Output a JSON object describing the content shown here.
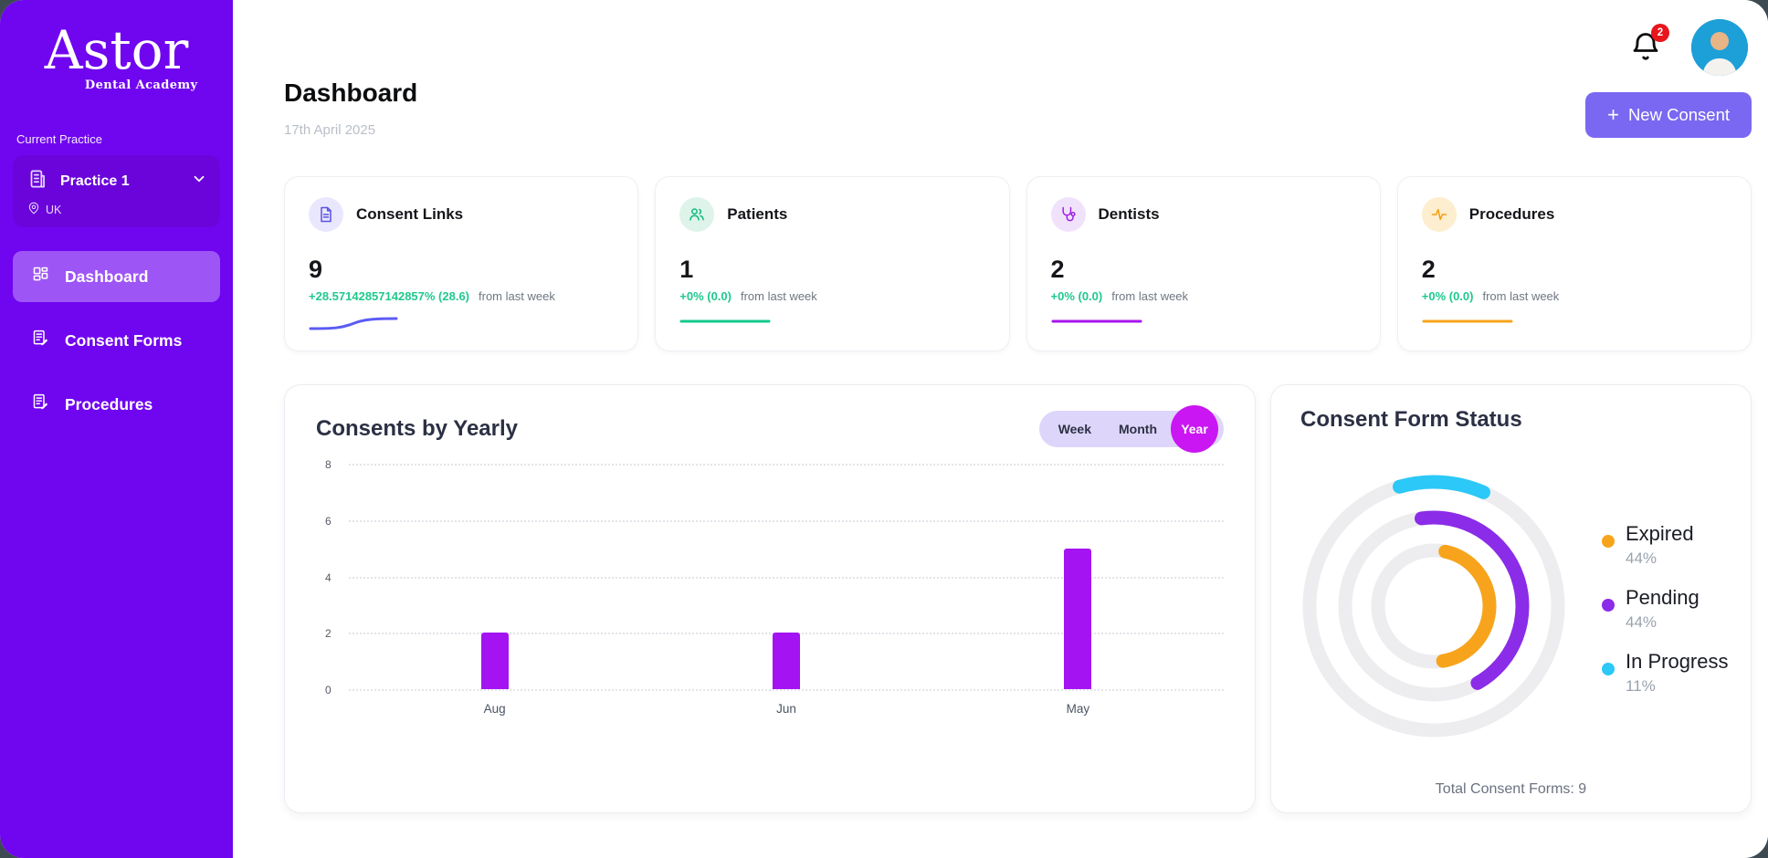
{
  "sidebar": {
    "logo": {
      "name": "Astor",
      "tagline": "Dental Academy"
    },
    "current_practice_label": "Current Practice",
    "practice": {
      "name": "Practice 1",
      "location": "UK"
    },
    "nav": [
      {
        "label": "Dashboard"
      },
      {
        "label": "Consent Forms"
      },
      {
        "label": "Procedures"
      }
    ]
  },
  "topbar": {
    "notification_count": "2"
  },
  "header": {
    "title": "Dashboard",
    "date": "17th April 2025",
    "new_consent_label": "New Consent",
    "plus": "+"
  },
  "stat_cards": [
    {
      "title": "Consent Links",
      "value": "9",
      "change": "+28.57142857142857% (28.6)",
      "change_suffix": "from last week",
      "accent": "#5b5bf5",
      "chip_bg": "#e9e7fd",
      "chip_color": "#5a52e0",
      "change_color": "#1fc98c",
      "spark": "rise"
    },
    {
      "title": "Patients",
      "value": "1",
      "change": "+0% (0.0)",
      "change_suffix": "from last week",
      "accent": "#12c98c",
      "chip_bg": "#def3ea",
      "chip_color": "#12b981",
      "change_color": "#1fc98c",
      "spark": "flat"
    },
    {
      "title": "Dentists",
      "value": "2",
      "change": "+0% (0.0)",
      "change_suffix": "from last week",
      "accent": "#a913ee",
      "chip_bg": "#f1e2fc",
      "chip_color": "#9c1fe8",
      "change_color": "#1fc98c",
      "spark": "flat"
    },
    {
      "title": "Procedures",
      "value": "2",
      "change": "+0% (0.0)",
      "change_suffix": "from last week",
      "accent": "#f7a41c",
      "chip_bg": "#fdeecf",
      "chip_color": "#f59e0b",
      "change_color": "#1fc98c",
      "spark": "flat"
    }
  ],
  "chart_data": [
    {
      "type": "bar",
      "title": "Consents by Yearly",
      "categories": [
        "Aug",
        "Jun",
        "May"
      ],
      "values": [
        2,
        2,
        5
      ],
      "ylim": [
        0,
        8
      ],
      "yticks": [
        0,
        2,
        4,
        6,
        8
      ],
      "grid": "dotted-horizontal",
      "bar_color": "#a414f2",
      "toggle": {
        "options": [
          "Week",
          "Month",
          "Year"
        ],
        "selected": "Year",
        "selected_color": "#ca16f2"
      }
    },
    {
      "type": "radial",
      "title": "Consent Form Status",
      "series": [
        {
          "name": "Expired",
          "pct": 44,
          "color": "#f7a41c",
          "ring": "inner"
        },
        {
          "name": "Pending",
          "pct": 44,
          "color": "#8b2ce8",
          "ring": "middle"
        },
        {
          "name": "In Progress",
          "pct": 11,
          "color": "#2cc8f7",
          "ring": "outer"
        }
      ],
      "track_color": "#ededf0",
      "legend_position": "right",
      "footer": "Total Consent Forms: 9"
    }
  ]
}
